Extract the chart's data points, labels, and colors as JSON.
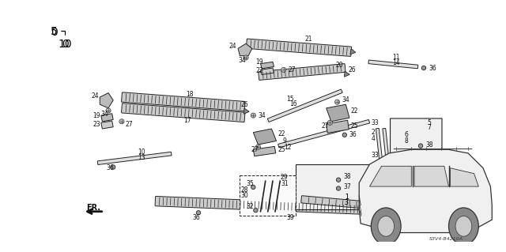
{
  "bg_color": "#ffffff",
  "diagram_code": "S3V4-B4210A",
  "fig_width": 6.4,
  "fig_height": 3.19
}
